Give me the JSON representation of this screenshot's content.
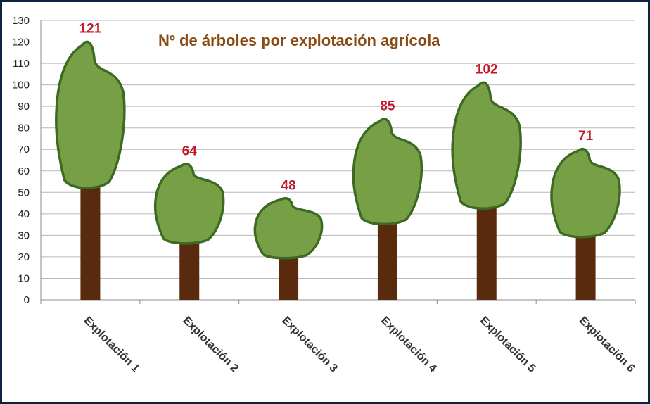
{
  "chart_data": {
    "type": "bar",
    "title": "Nº de árboles por explotación agrícola",
    "categories": [
      "Explotación 1",
      "Explotación 2",
      "Explotación 3",
      "Explotación 4",
      "Explotación 5",
      "Explotación 6"
    ],
    "values": [
      121,
      64,
      48,
      85,
      102,
      71
    ],
    "xlabel": "",
    "ylabel": "",
    "ylim": [
      0,
      130
    ],
    "yticks": [
      0,
      10,
      20,
      30,
      40,
      50,
      60,
      70,
      80,
      90,
      100,
      110,
      120,
      130
    ],
    "grid": true,
    "legend": "none",
    "colors": {
      "trunk": "#5a2a0e",
      "crown_fill": "#77a046",
      "crown_stroke": "#3d6a22",
      "value_label": "#c0182a",
      "title": "#8a4a12"
    }
  }
}
